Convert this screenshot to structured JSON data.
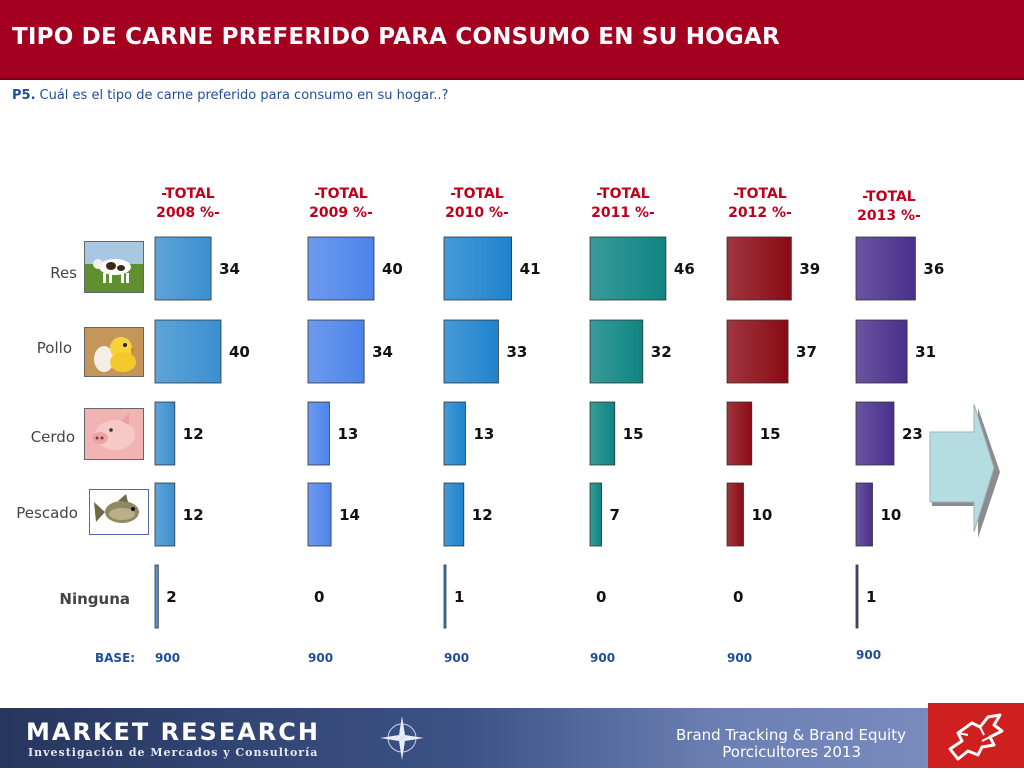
{
  "header": {
    "title": "TIPO DE CARNE PREFERIDO PARA CONSUMO EN SU HOGAR"
  },
  "question": {
    "label": "P5.",
    "text": "Cuál  es el tipo de carne preferido para consumo en su hogar..?"
  },
  "footer": {
    "company": "MARKET RESEARCH",
    "company_sub": "Investigación de Mercados y Consultoría",
    "brand_line1": "Brand Tracking & Brand Equity",
    "brand_line2": "Porcicultores 2013"
  },
  "icons": [
    "cow-image",
    "chick-image",
    "pig-image",
    "fish-image",
    "next-arrow-icon",
    "compass-icon",
    "company-logo"
  ],
  "chart_data": {
    "type": "bar",
    "orientation": "horizontal",
    "categories": [
      "Res",
      "Pollo",
      "Cerdo",
      "Pescado",
      "Ninguna"
    ],
    "base_label": "BASE:",
    "series": [
      {
        "name": "-TOTAL\n2008 %-",
        "values": [
          34,
          40,
          12,
          12,
          2
        ],
        "base": "900",
        "color": "#3b8fd0"
      },
      {
        "name": "-TOTAL\n2009 %-",
        "values": [
          40,
          34,
          13,
          14,
          0
        ],
        "base": "900",
        "color": "#4d84ea"
      },
      {
        "name": "-TOTAL\n2010 %-",
        "values": [
          41,
          33,
          13,
          12,
          1
        ],
        "base": "900",
        "color": "#1f83cd"
      },
      {
        "name": "-TOTAL\n2011 %-",
        "values": [
          46,
          32,
          15,
          7,
          0
        ],
        "base": "900",
        "color": "#0e8583"
      },
      {
        "name": "-TOTAL\n2012 %-",
        "values": [
          39,
          37,
          15,
          10,
          0
        ],
        "base": "900",
        "color": "#8a0a14"
      },
      {
        "name": "-TOTAL\n2013 %-",
        "values": [
          36,
          31,
          23,
          10,
          1
        ],
        "base": "900",
        "color": "#4a2f8c"
      }
    ],
    "colors": {
      "series_title": "#c0001a",
      "base": "#1f4e99",
      "category": "#444444"
    }
  }
}
